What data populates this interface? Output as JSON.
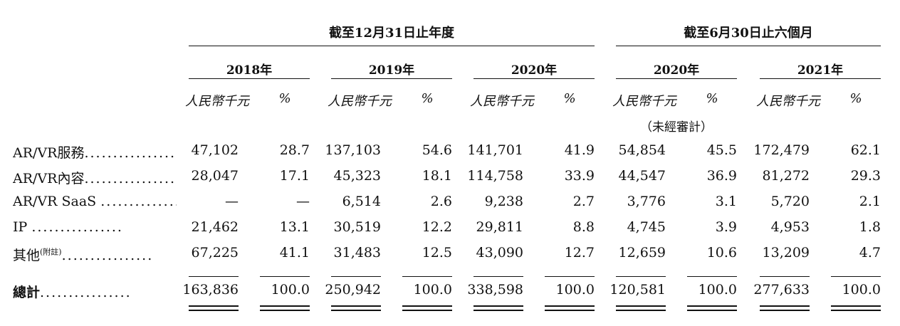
{
  "header": {
    "group_year": "截至12月31日止年度",
    "group_six": "截至6月30日止六個月",
    "years": [
      "2018年",
      "2019年",
      "2020年",
      "2020年",
      "2021年"
    ],
    "unit_rmb": "人民幣千元",
    "unit_pct": "%",
    "unaudited": "（未經審計）"
  },
  "rows": [
    {
      "label": "AR/VR服務",
      "sup": "",
      "cells": [
        "47,102",
        "28.7",
        "137,103",
        "54.6",
        "141,701",
        "41.9",
        "54,854",
        "45.5",
        "172,479",
        "62.1"
      ]
    },
    {
      "label": "AR/VR內容",
      "sup": "",
      "cells": [
        "28,047",
        "17.1",
        "45,323",
        "18.1",
        "114,758",
        "33.9",
        "44,547",
        "36.9",
        "81,272",
        "29.3"
      ]
    },
    {
      "label": "AR/VR SaaS ",
      "sup": "",
      "cells": [
        "—",
        "—",
        "6,514",
        "2.6",
        "9,238",
        "2.7",
        "3,776",
        "3.1",
        "5,720",
        "2.1"
      ]
    },
    {
      "label": "IP ",
      "sup": "",
      "cells": [
        "21,462",
        "13.1",
        "30,519",
        "12.2",
        "29,811",
        "8.8",
        "4,745",
        "3.9",
        "4,953",
        "1.8"
      ]
    },
    {
      "label": "其他",
      "sup": "(附註)",
      "cells": [
        "67,225",
        "41.1",
        "31,483",
        "12.5",
        "43,090",
        "12.7",
        "12,659",
        "10.6",
        "13,209",
        "4.7"
      ]
    }
  ],
  "total": {
    "label": "總計",
    "cells": [
      "163,836",
      "100.0",
      "250,942",
      "100.0",
      "338,598",
      "100.0",
      "120,581",
      "100.0",
      "277,633",
      "100.0"
    ]
  },
  "dots": "................"
}
